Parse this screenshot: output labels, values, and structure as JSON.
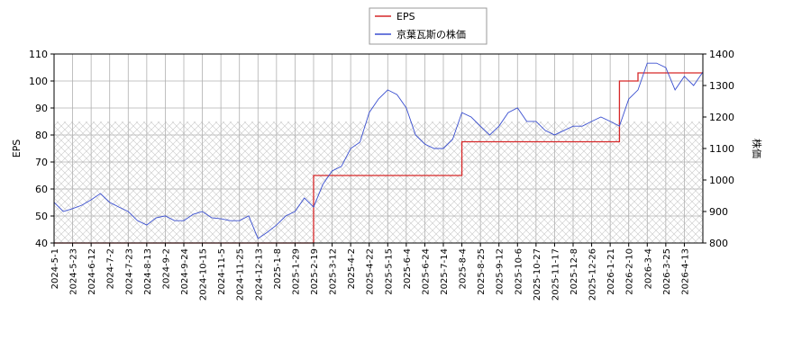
{
  "chart_data": {
    "type": "line",
    "categories": [
      "2024-5-1",
      null,
      "2024-5-23",
      null,
      "2024-6-12",
      null,
      "2024-7-2",
      null,
      "2024-7-23",
      null,
      "2024-8-13",
      null,
      "2024-9-2",
      null,
      "2024-9-24",
      null,
      "2024-10-15",
      null,
      "2024-11-5",
      null,
      "2024-11-25",
      null,
      "2024-12-13",
      null,
      "2025-1-8",
      null,
      "2025-1-29",
      null,
      "2025-2-19",
      null,
      "2025-3-12",
      null,
      "2025-4-2",
      null,
      "2025-4-22",
      null,
      "2025-5-15",
      null,
      "2025-6-4",
      null,
      "2025-6-24",
      null,
      "2025-7-14",
      null,
      "2025-8-4",
      null,
      "2025-8-25",
      null,
      "2025-9-12",
      null,
      "2025-10-6",
      null,
      "2025-10-27",
      null,
      "2025-11-17",
      null,
      "2025-12-8",
      null,
      "2025-12-26",
      null,
      "2026-1-21",
      null,
      "2026-2-10",
      null,
      "2026-3-4",
      null,
      "2026-3-25",
      null,
      "2026-4-13",
      null,
      null
    ],
    "series": [
      {
        "name": "EPS",
        "color": "#d62728",
        "axis": "y",
        "values": [
          40,
          40,
          40,
          40,
          40,
          40,
          40,
          40,
          40,
          40,
          40,
          40,
          40,
          40,
          40,
          40,
          40,
          40,
          40,
          40,
          40,
          40,
          40,
          40,
          40,
          40,
          40,
          40,
          65,
          65,
          65,
          65,
          65,
          65,
          65,
          65,
          65,
          65,
          65,
          65,
          65,
          65,
          65,
          65,
          77.5,
          77.5,
          77.5,
          77.5,
          77.5,
          77.5,
          77.5,
          77.5,
          77.5,
          77.5,
          77.5,
          77.5,
          77.5,
          77.5,
          77.5,
          77.5,
          77.5,
          100,
          100,
          103,
          103,
          103,
          103,
          103,
          103,
          103,
          103
        ]
      },
      {
        "name": "京葉瓦斯の株価",
        "color": "#3a4fd0",
        "axis": "y2",
        "values": [
          929,
          900,
          909,
          920,
          937,
          957,
          929,
          914,
          900,
          871,
          857,
          880,
          886,
          871,
          871,
          891,
          900,
          880,
          877,
          871,
          871,
          886,
          814,
          834,
          857,
          886,
          900,
          943,
          914,
          986,
          1029,
          1043,
          1100,
          1120,
          1214,
          1257,
          1286,
          1271,
          1229,
          1143,
          1114,
          1100,
          1100,
          1129,
          1214,
          1200,
          1171,
          1143,
          1171,
          1214,
          1229,
          1186,
          1186,
          1157,
          1143,
          1157,
          1171,
          1171,
          1186,
          1200,
          1186,
          1171,
          1257,
          1286,
          1371,
          1371,
          1357,
          1286,
          1329,
          1300,
          1343
        ]
      }
    ],
    "ylabel": "EPS",
    "y2label": "株価",
    "ylim": [
      40,
      110
    ],
    "yticks": [
      40,
      50,
      60,
      70,
      80,
      90,
      100,
      110
    ],
    "y2lim": [
      800,
      1400
    ],
    "y2ticks": [
      800,
      900,
      1000,
      1100,
      1200,
      1300,
      1400
    ],
    "grid": true
  }
}
